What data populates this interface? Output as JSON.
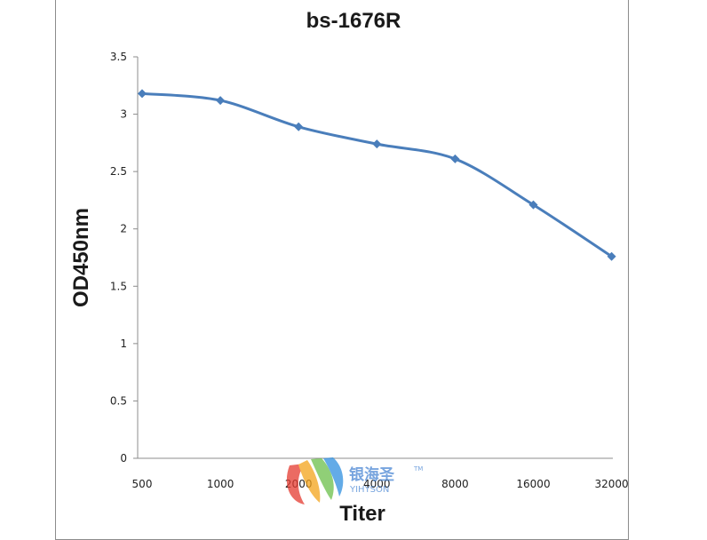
{
  "chart_data": {
    "type": "line",
    "title": "bs-1676R",
    "xlabel": "Titer",
    "ylabel": "OD450nm",
    "categories": [
      "500",
      "1000",
      "2000",
      "4000",
      "8000",
      "16000",
      "32000"
    ],
    "series": [
      {
        "values": [
          3.18,
          3.12,
          2.89,
          2.74,
          2.61,
          2.21,
          1.76
        ]
      }
    ],
    "ylim": [
      0,
      3.5
    ],
    "yticks": [
      "0",
      "0.5",
      "1",
      "1.5",
      "2",
      "2.5",
      "3",
      "3.5"
    ],
    "grid": false,
    "legend": "none",
    "line_color": "#4a7ebb",
    "marker": "diamond"
  },
  "watermark": {
    "logo": "yiyhson-logo",
    "text_cn": "银海圣",
    "text_en": "YIHYSON",
    "tm": "TM"
  }
}
